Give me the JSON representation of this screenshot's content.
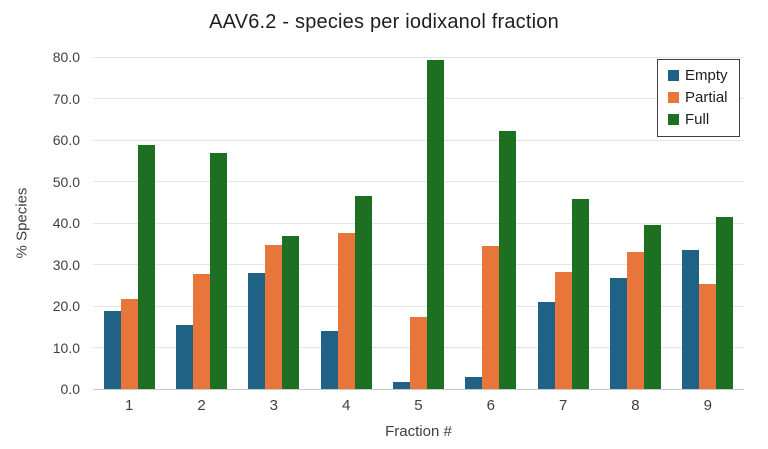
{
  "title": "AAV6.2 - species per iodixanol fraction",
  "colors": {
    "empty": "#1F6285",
    "partial": "#E8763B",
    "full": "#1D7021",
    "gridline": "#E4E4E4",
    "axis_line": "#C9C9C9",
    "text": "#404040",
    "title_text": "#1F1F1F",
    "legend_border": "#3F3F3F"
  },
  "chart_data": {
    "type": "bar",
    "title": "AAV6.2 - species per iodixanol fraction",
    "xlabel": "Fraction #",
    "ylabel": "% Species",
    "categories": [
      "1",
      "2",
      "3",
      "4",
      "5",
      "6",
      "7",
      "8",
      "9"
    ],
    "series": [
      {
        "name": "Empty",
        "color": "#1F6285",
        "values": [
          18.8,
          15.5,
          27.9,
          13.9,
          1.7,
          2.9,
          20.9,
          26.7,
          33.5
        ]
      },
      {
        "name": "Partial",
        "color": "#E8763B",
        "values": [
          21.6,
          27.6,
          34.7,
          37.7,
          17.4,
          34.5,
          28.1,
          33.0,
          25.3
        ]
      },
      {
        "name": "Full",
        "color": "#1D7021",
        "values": [
          58.7,
          56.9,
          36.8,
          46.6,
          79.4,
          62.2,
          45.8,
          39.6,
          41.4
        ]
      }
    ],
    "ylim": [
      0,
      80
    ],
    "ytick_step": 10,
    "ytick_labels": [
      "0.0",
      "10.0",
      "20.0",
      "30.0",
      "40.0",
      "50.0",
      "60.0",
      "70.0",
      "80.0"
    ],
    "grid": true,
    "legend_position": "top-right"
  }
}
